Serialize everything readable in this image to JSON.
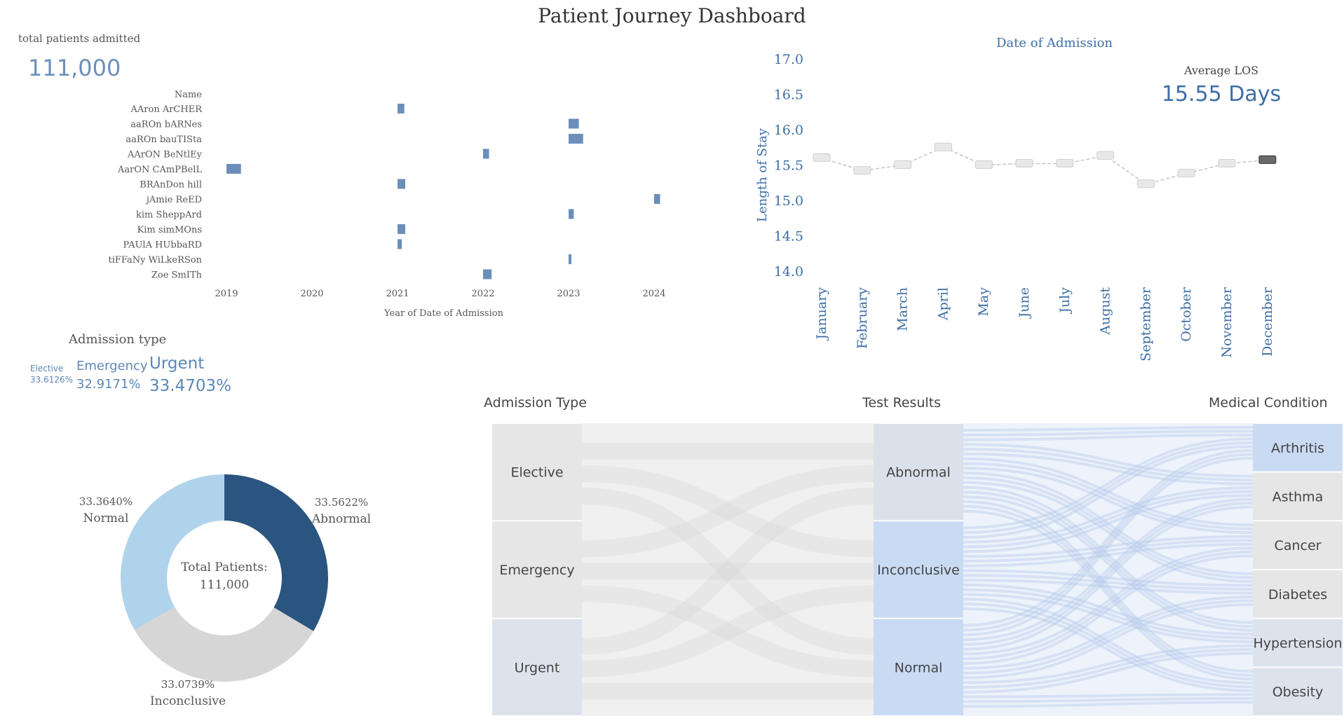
{
  "dashboard": {
    "title": "Patient Journey Dashboard",
    "kpi_label": "total patients admitted",
    "kpi_value": "111,000"
  },
  "colors": {
    "accent": "#6b8fba",
    "dark_blue": "#2a5580",
    "light_blue": "#afd3ea",
    "light_gray": "#d6d6d6",
    "node_gray": "#e4e4e4",
    "node_blue": "#c9daf3"
  },
  "chart_data": [
    {
      "type": "gantt",
      "ylabel": "Name",
      "xlabel": "Year of Date of Admission",
      "x_ticks": [
        "2019",
        "2020",
        "2021",
        "2022",
        "2023",
        "2024"
      ],
      "xlim": [
        2019,
        2024.2
      ],
      "rows": [
        {
          "name": "AAron ArCHER",
          "start": 2021.0,
          "end": 2021.08
        },
        {
          "name": "aaROn bARNes",
          "start": 2023.0,
          "end": 2023.12
        },
        {
          "name": "aaROn bauTISta",
          "start": 2023.0,
          "end": 2023.17
        },
        {
          "name": "AArON BeNtlEy",
          "start": 2022.0,
          "end": 2022.07
        },
        {
          "name": "AarON CAmPBelL",
          "start": 2019.0,
          "end": 2019.17
        },
        {
          "name": "BRAnDon hill",
          "start": 2021.0,
          "end": 2021.09
        },
        {
          "name": "jAmie ReED",
          "start": 2024.0,
          "end": 2024.07
        },
        {
          "name": "kim SheppArd",
          "start": 2023.0,
          "end": 2023.06
        },
        {
          "name": "Kim simMOns",
          "start": 2021.0,
          "end": 2021.09
        },
        {
          "name": "PAUlA HUbbaRD",
          "start": 2021.0,
          "end": 2021.05
        },
        {
          "name": "tiFFaNy WiLkeRSon",
          "start": 2023.0,
          "end": 2023.03
        },
        {
          "name": "Zoe SmITh",
          "start": 2022.0,
          "end": 2022.1
        }
      ]
    },
    {
      "type": "line",
      "title": "Date of Admission",
      "ylabel": "Length of Stay",
      "ylim": [
        14.0,
        17.0
      ],
      "y_ticks": [
        "14.0",
        "14.5",
        "15.0",
        "15.5",
        "16.0",
        "16.5",
        "17.0"
      ],
      "categories": [
        "January",
        "February",
        "March",
        "April",
        "May",
        "June",
        "July",
        "August",
        "September",
        "October",
        "November",
        "December"
      ],
      "values": [
        15.6,
        15.42,
        15.5,
        15.75,
        15.5,
        15.52,
        15.52,
        15.63,
        15.23,
        15.38,
        15.52,
        15.57
      ],
      "annotation_label": "Average LOS",
      "annotation_value": "15.55 Days"
    },
    {
      "type": "pie",
      "title": "Admission type",
      "slices": [
        {
          "label": "Elective",
          "value": 33.6126,
          "text": "33.6126%"
        },
        {
          "label": "Emergency",
          "value": 32.9171,
          "text": "32.9171%"
        },
        {
          "label": "Urgent",
          "value": 33.4703,
          "text": "33.4703%"
        }
      ]
    },
    {
      "type": "pie",
      "donut": true,
      "center_label": "Total Patients:",
      "center_value": "111,000",
      "slices": [
        {
          "label": "Abnormal",
          "value": 33.5622,
          "text": "33.5622%",
          "color": "#2a5580"
        },
        {
          "label": "Inconclusive",
          "value": 33.0739,
          "text": "33.0739%",
          "color": "#d6d6d6"
        },
        {
          "label": "Normal",
          "value": 33.364,
          "text": "33.3640%",
          "color": "#afd3ea"
        }
      ]
    },
    {
      "type": "sankey",
      "headers": [
        "Admission Type",
        "Test Results",
        "Medical Condition"
      ],
      "admission_types": [
        "Elective",
        "Emergency",
        "Urgent"
      ],
      "test_results": [
        "Abnormal",
        "Inconclusive",
        "Normal"
      ],
      "medical_conditions": [
        "Arthritis",
        "Asthma",
        "Cancer",
        "Diabetes",
        "Hypertension",
        "Obesity"
      ]
    }
  ]
}
